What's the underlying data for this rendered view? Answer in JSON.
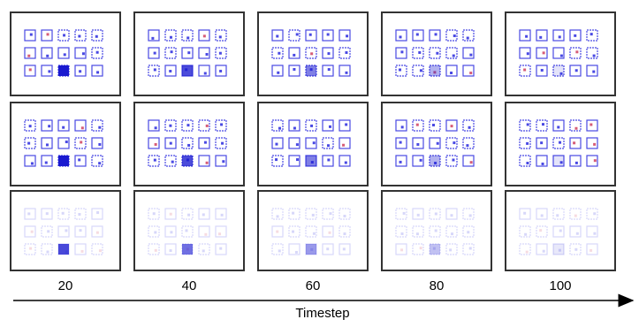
{
  "columns": [
    "20",
    "40",
    "60",
    "80",
    "100"
  ],
  "axis_label": "Timestep"
}
